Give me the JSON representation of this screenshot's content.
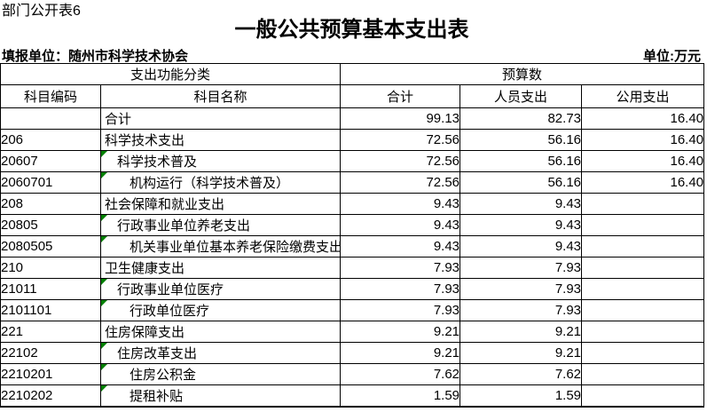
{
  "page": {
    "table_label": "部门公开表6",
    "title": "一般公共预算基本支出表",
    "reporting_unit": "填报单位：随州市科学技术协会",
    "unit_label": "单位:万元"
  },
  "table": {
    "marker_color": "#008000",
    "header": {
      "function_group": "支出功能分类",
      "budget_group": "预算数",
      "col_code": "科目编码",
      "col_name": "科目名称",
      "col_total": "合计",
      "col_personnel": "人员支出",
      "col_public": "公用支出"
    },
    "rows": [
      {
        "code": "",
        "name": "合计",
        "indent": 0,
        "marker": false,
        "total": "99.13",
        "personnel": "82.73",
        "public": "16.40"
      },
      {
        "code": "206",
        "name": "科学技术支出",
        "indent": 0,
        "marker": false,
        "total": "72.56",
        "personnel": "56.16",
        "public": "16.40"
      },
      {
        "code": "20607",
        "name": "科学技术普及",
        "indent": 1,
        "marker": true,
        "total": "72.56",
        "personnel": "56.16",
        "public": "16.40"
      },
      {
        "code": "2060701",
        "name": "机构运行（科学技术普及）",
        "indent": 2,
        "marker": true,
        "total": "72.56",
        "personnel": "56.16",
        "public": "16.40"
      },
      {
        "code": "208",
        "name": "社会保障和就业支出",
        "indent": 0,
        "marker": false,
        "total": "9.43",
        "personnel": "9.43",
        "public": ""
      },
      {
        "code": "20805",
        "name": "行政事业单位养老支出",
        "indent": 1,
        "marker": true,
        "total": "9.43",
        "personnel": "9.43",
        "public": ""
      },
      {
        "code": "2080505",
        "name": "机关事业单位基本养老保险缴费支出",
        "indent": 2,
        "marker": true,
        "total": "9.43",
        "personnel": "9.43",
        "public": ""
      },
      {
        "code": "210",
        "name": "卫生健康支出",
        "indent": 0,
        "marker": false,
        "total": "7.93",
        "personnel": "7.93",
        "public": ""
      },
      {
        "code": "21011",
        "name": "行政事业单位医疗",
        "indent": 1,
        "marker": true,
        "total": "7.93",
        "personnel": "7.93",
        "public": ""
      },
      {
        "code": "2101101",
        "name": "行政单位医疗",
        "indent": 2,
        "marker": true,
        "total": "7.93",
        "personnel": "7.93",
        "public": ""
      },
      {
        "code": "221",
        "name": "住房保障支出",
        "indent": 0,
        "marker": false,
        "total": "9.21",
        "personnel": "9.21",
        "public": ""
      },
      {
        "code": "22102",
        "name": "住房改革支出",
        "indent": 1,
        "marker": true,
        "total": "9.21",
        "personnel": "9.21",
        "public": ""
      },
      {
        "code": "2210201",
        "name": "住房公积金",
        "indent": 2,
        "marker": true,
        "total": "7.62",
        "personnel": "7.62",
        "public": ""
      },
      {
        "code": "2210202",
        "name": "提租补贴",
        "indent": 2,
        "marker": true,
        "total": "1.59",
        "personnel": "1.59",
        "public": ""
      }
    ]
  }
}
